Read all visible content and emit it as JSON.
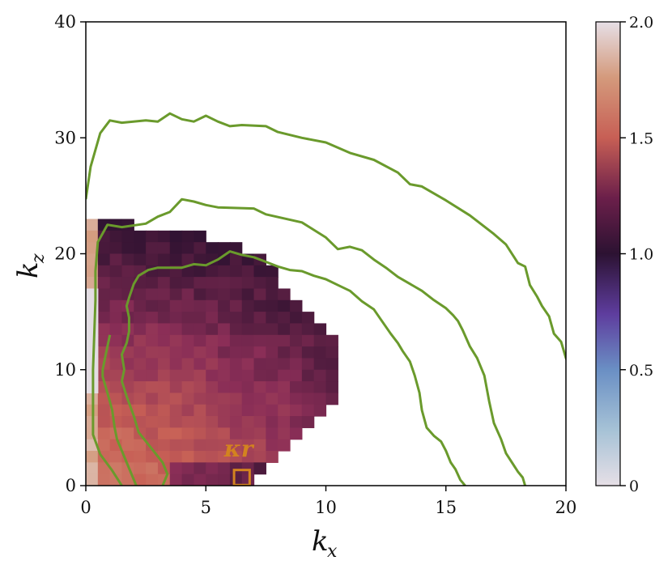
{
  "chart_data": {
    "type": "heatmap",
    "title": "",
    "xlabel": {
      "main": "k",
      "sub": "x"
    },
    "ylabel": {
      "main": "k",
      "sub": "z"
    },
    "xlim": [
      0,
      20
    ],
    "ylim": [
      0,
      40
    ],
    "xticks": [
      0,
      5,
      10,
      15,
      20
    ],
    "yticks": [
      0,
      10,
      20,
      30,
      40
    ],
    "colorbar": {
      "range": [
        0,
        2.0
      ],
      "ticks": [
        0,
        0.5,
        1.0,
        1.5,
        2.0
      ],
      "tick_labels": [
        "0",
        "0.5",
        "1.0",
        "1.5",
        "2.0"
      ],
      "colormap_stops": [
        {
          "v": 0.0,
          "color": "#e6dfe6"
        },
        {
          "v": 0.25,
          "color": "#a6c2d6"
        },
        {
          "v": 0.45,
          "color": "#6a8fc4"
        },
        {
          "v": 0.7,
          "color": "#5e3d9e"
        },
        {
          "v": 0.95,
          "color": "#2c1232"
        },
        {
          "v": 1.05,
          "color": "#3a1535"
        },
        {
          "v": 1.3,
          "color": "#8a2e57"
        },
        {
          "v": 1.55,
          "color": "#c75f55"
        },
        {
          "v": 1.8,
          "color": "#d49a7c"
        },
        {
          "v": 2.0,
          "color": "#e6dfe6"
        }
      ]
    },
    "heatmap_cell": {
      "dx": 0.5,
      "dz": 1.0
    },
    "heatmap_profile": [
      {
        "kz": 23,
        "kx_max": 2.3
      },
      {
        "kz": 22,
        "kx_max": 5.3
      },
      {
        "kz": 21,
        "kx_max": 6.7
      },
      {
        "kz": 20,
        "kx_max": 7.7
      },
      {
        "kz": 19,
        "kx_max": 8.2
      },
      {
        "kz": 18,
        "kx_max": 8.2
      },
      {
        "kz": 17,
        "kx_max": 8.7
      },
      {
        "kz": 16,
        "kx_max": 9.2
      },
      {
        "kz": 15,
        "kx_max": 9.7
      },
      {
        "kz": 14,
        "kx_max": 10.2
      },
      {
        "kz": 13,
        "kx_max": 10.7
      },
      {
        "kz": 12,
        "kx_max": 10.7
      },
      {
        "kz": 11,
        "kx_max": 10.7
      },
      {
        "kz": 10,
        "kx_max": 10.7
      },
      {
        "kz": 9,
        "kx_max": 10.7
      },
      {
        "kz": 8,
        "kx_max": 10.7
      },
      {
        "kz": 7,
        "kx_max": 10.2
      },
      {
        "kz": 6,
        "kx_max": 9.7
      },
      {
        "kz": 5,
        "kx_max": 9.2
      },
      {
        "kz": 4,
        "kx_max": 8.7
      },
      {
        "kz": 3,
        "kx_max": 8.2
      },
      {
        "kz": 2,
        "kx_max": 7.7
      },
      {
        "kz": 1,
        "kx_max": 7.2
      }
    ],
    "contours": [
      {
        "color": "#6a9a2c",
        "points": [
          [
            0,
            24.7
          ],
          [
            0.2,
            27.5
          ],
          [
            0.6,
            30.4
          ],
          [
            1.0,
            31.5
          ],
          [
            1.5,
            31.3
          ],
          [
            2.5,
            31.5
          ],
          [
            3.0,
            31.4
          ],
          [
            3.5,
            32.1
          ],
          [
            4.0,
            31.6
          ],
          [
            4.5,
            31.4
          ],
          [
            5.0,
            31.9
          ],
          [
            5.5,
            31.4
          ],
          [
            6.0,
            31.0
          ],
          [
            6.5,
            31.1
          ],
          [
            7.5,
            31.0
          ],
          [
            8.0,
            30.5
          ],
          [
            9.0,
            30.0
          ],
          [
            10.0,
            29.6
          ],
          [
            11.0,
            28.7
          ],
          [
            12.0,
            28.1
          ],
          [
            13.0,
            27.0
          ],
          [
            13.5,
            26.0
          ],
          [
            14.0,
            25.8
          ],
          [
            15.0,
            24.6
          ],
          [
            16.0,
            23.3
          ],
          [
            17.0,
            21.7
          ],
          [
            17.5,
            20.8
          ],
          [
            18.0,
            19.2
          ],
          [
            18.3,
            18.9
          ],
          [
            18.5,
            17.3
          ],
          [
            18.8,
            16.3
          ],
          [
            19.0,
            15.5
          ],
          [
            19.3,
            14.6
          ],
          [
            19.5,
            13.1
          ],
          [
            19.8,
            12.4
          ],
          [
            20.0,
            11.0
          ],
          [
            20.2,
            10.0
          ],
          [
            20.3,
            8.6
          ],
          [
            20.1,
            6.6
          ],
          [
            20.1,
            4.0
          ],
          [
            20.2,
            2.7
          ],
          [
            20.4,
            1.7
          ],
          [
            20.6,
            0.5
          ],
          [
            20.7,
            0
          ]
        ]
      },
      {
        "color": "#6a9a2c",
        "points": [
          [
            1.5,
            0
          ],
          [
            1.1,
            1.3
          ],
          [
            0.6,
            2.7
          ],
          [
            0.3,
            4.4
          ],
          [
            0.3,
            10.0
          ],
          [
            0.4,
            16.0
          ],
          [
            0.4,
            18.5
          ],
          [
            0.5,
            21.0
          ],
          [
            0.9,
            22.5
          ],
          [
            1.5,
            22.3
          ],
          [
            2.5,
            22.6
          ],
          [
            3.0,
            23.2
          ],
          [
            3.5,
            23.6
          ],
          [
            4.0,
            24.7
          ],
          [
            4.5,
            24.5
          ],
          [
            5.0,
            24.2
          ],
          [
            5.5,
            24.0
          ],
          [
            7.0,
            23.9
          ],
          [
            7.5,
            23.4
          ],
          [
            9.0,
            22.7
          ],
          [
            10.0,
            21.4
          ],
          [
            10.5,
            20.4
          ],
          [
            11.0,
            20.6
          ],
          [
            11.5,
            20.3
          ],
          [
            12.0,
            19.5
          ],
          [
            12.5,
            18.8
          ],
          [
            13.0,
            18.0
          ],
          [
            13.5,
            17.4
          ],
          [
            14.0,
            16.8
          ],
          [
            14.5,
            16.0
          ],
          [
            15.0,
            15.3
          ],
          [
            15.3,
            14.7
          ],
          [
            15.5,
            14.2
          ],
          [
            15.7,
            13.4
          ],
          [
            16.0,
            12.0
          ],
          [
            16.3,
            11.0
          ],
          [
            16.6,
            9.5
          ],
          [
            16.8,
            7.3
          ],
          [
            17.0,
            5.4
          ],
          [
            17.3,
            4.0
          ],
          [
            17.5,
            2.8
          ],
          [
            18.0,
            1.2
          ],
          [
            18.2,
            0.7
          ],
          [
            18.3,
            0
          ]
        ]
      },
      {
        "color": "#6a9a2c",
        "points": [
          [
            3.2,
            0
          ],
          [
            3.4,
            1.0
          ],
          [
            3.2,
            2.0
          ],
          [
            2.7,
            3.3
          ],
          [
            2.2,
            4.6
          ],
          [
            2.0,
            6.0
          ],
          [
            1.7,
            7.7
          ],
          [
            1.5,
            9.0
          ],
          [
            1.6,
            10.0
          ],
          [
            1.5,
            11.3
          ],
          [
            1.7,
            12.3
          ],
          [
            1.8,
            13.3
          ],
          [
            1.8,
            14.5
          ],
          [
            1.7,
            15.5
          ],
          [
            1.8,
            16.2
          ],
          [
            2.0,
            17.4
          ],
          [
            2.2,
            18.1
          ],
          [
            2.6,
            18.6
          ],
          [
            3.0,
            18.8
          ],
          [
            3.5,
            18.8
          ],
          [
            4.0,
            18.8
          ],
          [
            4.5,
            19.1
          ],
          [
            5.0,
            19.0
          ],
          [
            5.5,
            19.5
          ],
          [
            6.0,
            20.2
          ],
          [
            6.5,
            19.9
          ],
          [
            7.0,
            19.7
          ],
          [
            7.5,
            19.3
          ],
          [
            8.0,
            18.9
          ],
          [
            8.5,
            18.6
          ],
          [
            9.0,
            18.5
          ],
          [
            9.5,
            18.1
          ],
          [
            10.0,
            17.8
          ],
          [
            10.5,
            17.3
          ],
          [
            11.0,
            16.8
          ],
          [
            11.5,
            15.9
          ],
          [
            12.0,
            15.2
          ],
          [
            12.3,
            14.3
          ],
          [
            12.7,
            13.1
          ],
          [
            13.0,
            12.3
          ],
          [
            13.2,
            11.6
          ],
          [
            13.5,
            10.7
          ],
          [
            13.7,
            9.5
          ],
          [
            13.9,
            8.0
          ],
          [
            14.0,
            6.5
          ],
          [
            14.2,
            5.0
          ],
          [
            14.5,
            4.3
          ],
          [
            14.8,
            3.8
          ],
          [
            15.0,
            3.0
          ],
          [
            15.2,
            2.0
          ],
          [
            15.4,
            1.4
          ],
          [
            15.6,
            0.5
          ],
          [
            15.8,
            0
          ]
        ]
      },
      {
        "color": "#6a9a2c",
        "points": [
          [
            2.1,
            0
          ],
          [
            1.8,
            1.5
          ],
          [
            1.5,
            3.0
          ],
          [
            1.3,
            4.0
          ],
          [
            1.2,
            5.0
          ],
          [
            1.1,
            6.5
          ],
          [
            0.9,
            8.0
          ],
          [
            0.7,
            9.4
          ],
          [
            0.7,
            10.0
          ],
          [
            0.8,
            11.0
          ],
          [
            0.9,
            12.0
          ],
          [
            1.0,
            13.0
          ]
        ]
      }
    ],
    "marker": {
      "kx": 6.5,
      "kz": 0.7,
      "size": 1.3,
      "color": "#d3831f",
      "label": "κr"
    }
  }
}
